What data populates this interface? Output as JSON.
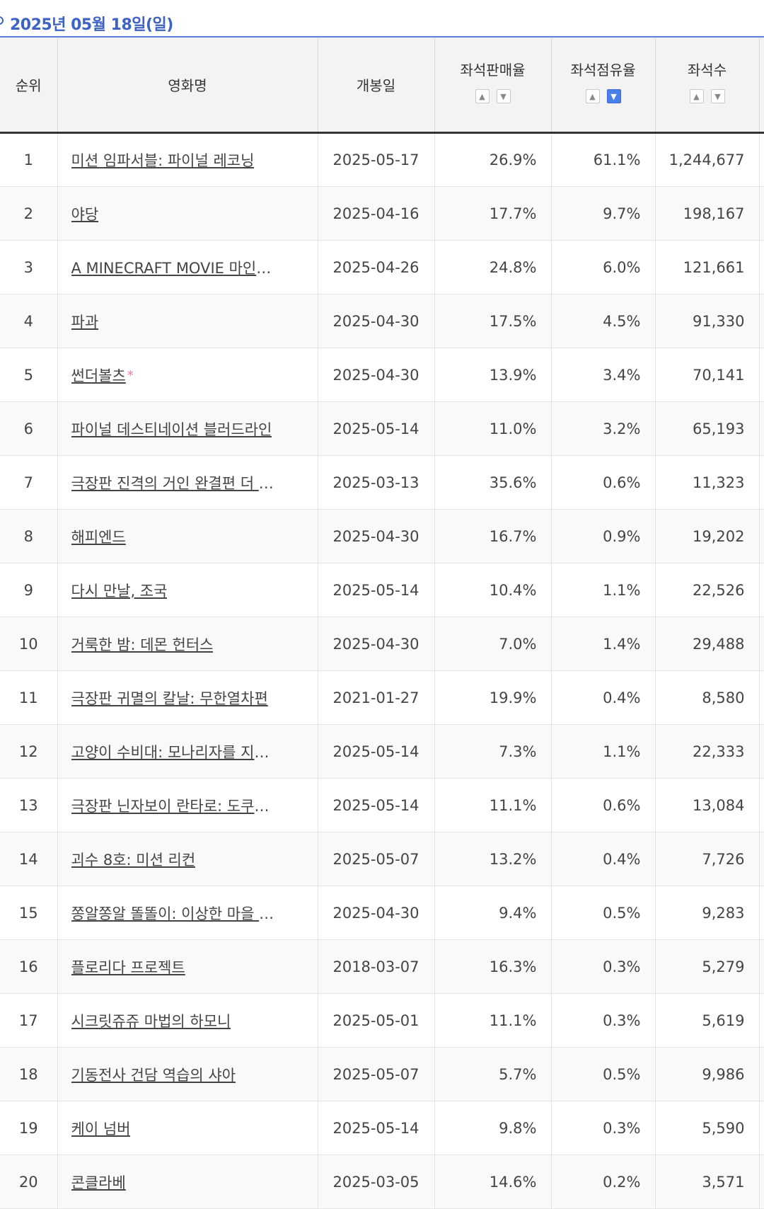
{
  "date_label": "2025년 05월 18일(일)",
  "columns": {
    "rank": "순위",
    "title": "영화명",
    "release": "개봉일",
    "sales": "좌석판매율",
    "share": "좌석점유율",
    "seats": "좌석수"
  },
  "sort_icons": {
    "up": "chevron-up-icon",
    "down": "chevron-down-icon"
  },
  "active_sort": {
    "column": "share",
    "direction": "desc",
    "color": "#4a7ee8"
  },
  "rows": [
    {
      "rank": "1",
      "title": "미션 임파서블: 파이널 레코닝",
      "release": "2025-05-17",
      "sales": "26.9%",
      "share": "61.1%",
      "seats": "1,244,677"
    },
    {
      "rank": "2",
      "title": "야당",
      "release": "2025-04-16",
      "sales": "17.7%",
      "share": "9.7%",
      "seats": "198,167"
    },
    {
      "rank": "3",
      "title": "A MINECRAFT MOVIE 마인크…",
      "release": "2025-04-26",
      "sales": "24.8%",
      "share": "6.0%",
      "seats": "121,661"
    },
    {
      "rank": "4",
      "title": "파과",
      "release": "2025-04-30",
      "sales": "17.5%",
      "share": "4.5%",
      "seats": "91,330"
    },
    {
      "rank": "5",
      "title": "썬더볼츠",
      "mark": "*",
      "release": "2025-04-30",
      "sales": "13.9%",
      "share": "3.4%",
      "seats": "70,141"
    },
    {
      "rank": "6",
      "title": "파이널 데스티네이션 블러드라인",
      "release": "2025-05-14",
      "sales": "11.0%",
      "share": "3.2%",
      "seats": "65,193"
    },
    {
      "rank": "7",
      "title": "극장판 진격의 거인 완결편 더 라스…",
      "release": "2025-03-13",
      "sales": "35.6%",
      "share": "0.6%",
      "seats": "11,323"
    },
    {
      "rank": "8",
      "title": "해피엔드",
      "release": "2025-04-30",
      "sales": "16.7%",
      "share": "0.9%",
      "seats": "19,202"
    },
    {
      "rank": "9",
      "title": "다시 만날, 조국",
      "release": "2025-05-14",
      "sales": "10.4%",
      "share": "1.1%",
      "seats": "22,526"
    },
    {
      "rank": "10",
      "title": "거룩한 밤: 데몬 헌터스",
      "release": "2025-04-30",
      "sales": "7.0%",
      "share": "1.4%",
      "seats": "29,488"
    },
    {
      "rank": "11",
      "title": "극장판 귀멸의 칼날: 무한열차편",
      "release": "2021-01-27",
      "sales": "19.9%",
      "share": "0.4%",
      "seats": "8,580"
    },
    {
      "rank": "12",
      "title": "고양이 수비대: 모나리자를 지켜라!",
      "release": "2025-05-14",
      "sales": "7.3%",
      "share": "1.1%",
      "seats": "22,333"
    },
    {
      "rank": "13",
      "title": "극장판 닌자보이 란타로: 도쿠타케…",
      "release": "2025-05-14",
      "sales": "11.1%",
      "share": "0.6%",
      "seats": "13,084"
    },
    {
      "rank": "14",
      "title": "괴수 8호: 미션 리컨",
      "release": "2025-05-07",
      "sales": "13.2%",
      "share": "0.4%",
      "seats": "7,726"
    },
    {
      "rank": "15",
      "title": "쫑알쫑알 똘똘이: 이상한 마을 대모…",
      "release": "2025-04-30",
      "sales": "9.4%",
      "share": "0.5%",
      "seats": "9,283"
    },
    {
      "rank": "16",
      "title": "플로리다 프로젝트",
      "release": "2018-03-07",
      "sales": "16.3%",
      "share": "0.3%",
      "seats": "5,279"
    },
    {
      "rank": "17",
      "title": "시크릿쥬쥬 마법의 하모니",
      "release": "2025-05-01",
      "sales": "11.1%",
      "share": "0.3%",
      "seats": "5,619"
    },
    {
      "rank": "18",
      "title": "기동전사 건담 역습의 샤아",
      "release": "2025-05-07",
      "sales": "5.7%",
      "share": "0.5%",
      "seats": "9,986"
    },
    {
      "rank": "19",
      "title": "케이 넘버",
      "release": "2025-05-14",
      "sales": "9.8%",
      "share": "0.3%",
      "seats": "5,590"
    },
    {
      "rank": "20",
      "title": "콘클라베",
      "release": "2025-03-05",
      "sales": "14.6%",
      "share": "0.2%",
      "seats": "3,571"
    }
  ]
}
